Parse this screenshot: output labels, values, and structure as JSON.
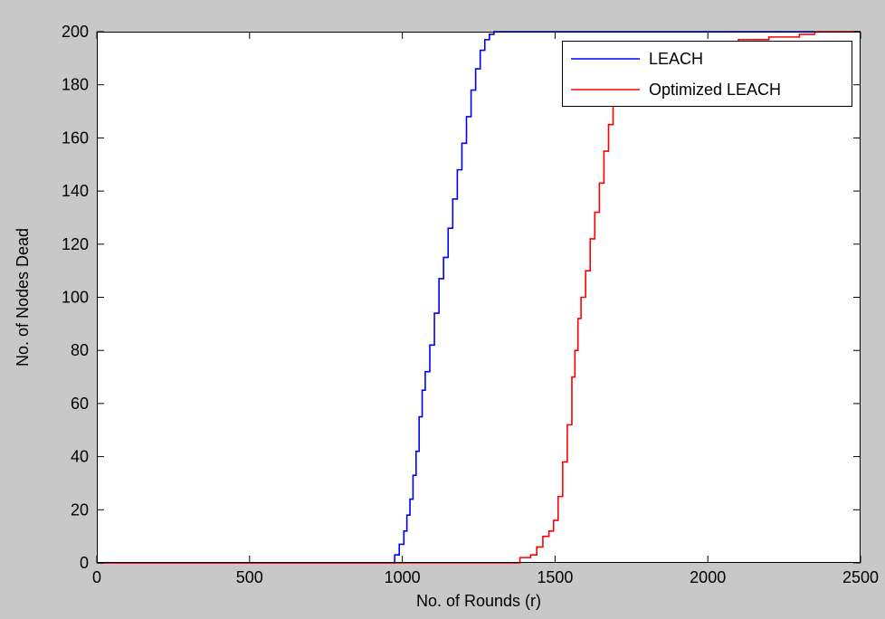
{
  "chart_data": {
    "type": "line",
    "title": "",
    "xlabel": "No. of Rounds (r)",
    "ylabel": "No. of  Nodes Dead",
    "xlim": [
      0,
      2500
    ],
    "ylim": [
      0,
      200
    ],
    "xticks": [
      0,
      500,
      1000,
      1500,
      2000,
      2500
    ],
    "yticks": [
      0,
      20,
      40,
      60,
      80,
      100,
      120,
      140,
      160,
      180,
      200
    ],
    "grid": false,
    "legend_position": "top-right",
    "series": [
      {
        "name": "LEACH",
        "color": "#0000ff",
        "x": [
          0,
          960,
          975,
          990,
          1005,
          1015,
          1025,
          1035,
          1045,
          1055,
          1065,
          1075,
          1090,
          1105,
          1120,
          1135,
          1150,
          1165,
          1180,
          1195,
          1210,
          1225,
          1240,
          1255,
          1270,
          1285,
          1300,
          1320,
          2500
        ],
        "y": [
          0,
          0,
          3,
          7,
          12,
          18,
          24,
          33,
          42,
          55,
          65,
          72,
          82,
          94,
          107,
          115,
          126,
          137,
          148,
          158,
          168,
          178,
          186,
          193,
          197,
          199,
          200,
          200,
          200
        ]
      },
      {
        "name": "Optimized LEACH",
        "color": "#ff0000",
        "x": [
          0,
          1370,
          1385,
          1420,
          1440,
          1460,
          1480,
          1495,
          1510,
          1525,
          1540,
          1555,
          1565,
          1575,
          1585,
          1600,
          1615,
          1630,
          1645,
          1660,
          1675,
          1690,
          1705,
          1720,
          1750,
          1800,
          1900,
          2000,
          2100,
          2200,
          2300,
          2350,
          2500
        ],
        "y": [
          0,
          0,
          2,
          3,
          6,
          10,
          12,
          16,
          25,
          38,
          52,
          70,
          80,
          92,
          100,
          110,
          122,
          132,
          143,
          155,
          165,
          175,
          183,
          188,
          192,
          194,
          195,
          196,
          197,
          198,
          199,
          200,
          200
        ]
      }
    ]
  }
}
